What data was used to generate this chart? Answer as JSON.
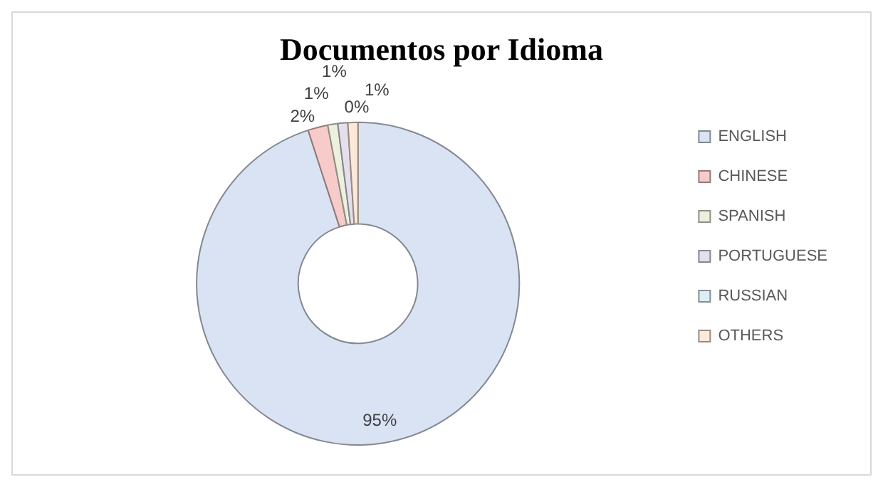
{
  "chart_data": {
    "type": "donut",
    "title": "Documentos por Idioma",
    "categories": [
      "ENGLISH",
      "CHINESE",
      "SPANISH",
      "PORTUGUESE",
      "RUSSIAN",
      "OTHERS"
    ],
    "values": [
      95,
      2,
      1,
      1,
      0,
      1
    ],
    "colors": [
      "#dae3f3",
      "#f8cbcb",
      "#ebf1de",
      "#e4dfec",
      "#daeef3",
      "#fde9d9"
    ],
    "value_labels": [
      "95%",
      "2%",
      "1%",
      "1%",
      "0%",
      "1%"
    ],
    "legend": "right"
  }
}
